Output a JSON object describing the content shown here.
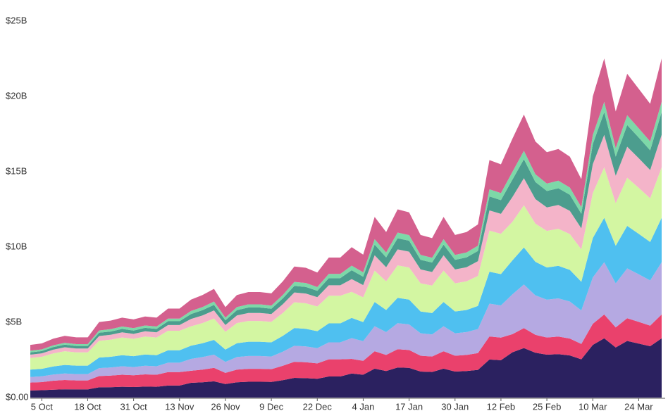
{
  "chart_data": {
    "type": "stacked_area",
    "categories": [
      null,
      "5 Oct",
      null,
      null,
      null,
      "18 Oct",
      null,
      null,
      null,
      "31 Oct",
      null,
      null,
      null,
      "13 Nov",
      null,
      null,
      null,
      "26 Nov",
      null,
      null,
      null,
      "9 Dec",
      null,
      null,
      null,
      "22 Dec",
      null,
      null,
      null,
      "4 Jan",
      null,
      null,
      null,
      "17 Jan",
      null,
      null,
      null,
      "30 Jan",
      null,
      null,
      null,
      "12 Feb",
      null,
      null,
      null,
      "25 Feb",
      null,
      null,
      null,
      "10 Mar",
      null,
      null,
      null,
      "24 Mar",
      null,
      null
    ],
    "ylim": [
      0,
      25
    ],
    "yticks": [
      {
        "value": 0,
        "label": "$0.00"
      },
      {
        "value": 5,
        "label": "$5B"
      },
      {
        "value": 10,
        "label": "$10B"
      },
      {
        "value": 15,
        "label": "$15B"
      },
      {
        "value": 20,
        "label": "$20B"
      },
      {
        "value": 25,
        "label": "$25B"
      }
    ],
    "grid": false,
    "series": [
      {
        "color": "#2b2160",
        "values": [
          0.47,
          0.49,
          0.53,
          0.55,
          0.54,
          0.54,
          0.68,
          0.69,
          0.72,
          0.7,
          0.73,
          0.72,
          0.8,
          0.8,
          0.98,
          1.02,
          1.08,
          0.9,
          1.02,
          1.05,
          1.05,
          1.04,
          1.16,
          1.31,
          1.29,
          1.25,
          1.4,
          1.4,
          1.6,
          1.52,
          1.92,
          1.76,
          2.0,
          1.97,
          1.73,
          1.7,
          1.92,
          1.73,
          1.76,
          1.84,
          2.53,
          2.48,
          3.01,
          3.29,
          2.98,
          2.85,
          2.89,
          2.8,
          2.54,
          3.5,
          3.94,
          3.33,
          3.76,
          3.59,
          3.41,
          3.94
        ]
      },
      {
        "color": "#ea416c",
        "values": [
          0.53,
          0.54,
          0.59,
          0.62,
          0.6,
          0.6,
          0.75,
          0.77,
          0.8,
          0.78,
          0.81,
          0.8,
          0.89,
          0.89,
          0.8,
          0.84,
          0.89,
          0.74,
          0.84,
          0.86,
          0.86,
          0.85,
          0.95,
          1.07,
          1.06,
          1.02,
          1.14,
          1.14,
          0.97,
          0.92,
          1.16,
          1.07,
          1.21,
          1.19,
          1.05,
          1.03,
          1.16,
          1.05,
          1.07,
          1.12,
          1.53,
          1.5,
          1.2,
          1.32,
          1.19,
          1.14,
          1.16,
          1.12,
          1.02,
          1.4,
          1.58,
          1.33,
          1.51,
          1.44,
          1.37,
          1.58
        ]
      },
      {
        "color": "#b5a9e2",
        "values": [
          0.37,
          0.38,
          0.41,
          0.43,
          0.42,
          0.42,
          0.53,
          0.54,
          0.56,
          0.55,
          0.57,
          0.56,
          0.63,
          0.63,
          0.79,
          0.83,
          0.88,
          0.73,
          0.83,
          0.85,
          0.85,
          0.84,
          0.94,
          1.06,
          1.05,
          1.01,
          1.13,
          1.13,
          1.38,
          1.31,
          1.66,
          1.52,
          1.73,
          1.7,
          1.49,
          1.46,
          1.66,
          1.49,
          1.52,
          1.59,
          2.18,
          2.14,
          2.65,
          2.9,
          2.62,
          2.51,
          2.54,
          2.46,
          2.23,
          3.08,
          3.47,
          2.93,
          3.31,
          3.16,
          3.0,
          3.47
        ]
      },
      {
        "color": "#4fc0f0",
        "values": [
          0.49,
          0.5,
          0.54,
          0.57,
          0.56,
          0.56,
          0.7,
          0.71,
          0.74,
          0.72,
          0.75,
          0.74,
          0.82,
          0.82,
          0.88,
          0.92,
          0.98,
          0.82,
          0.92,
          0.95,
          0.95,
          0.94,
          1.05,
          1.18,
          1.17,
          1.13,
          1.26,
          1.26,
          1.34,
          1.27,
          1.61,
          1.47,
          1.68,
          1.65,
          1.45,
          1.42,
          1.61,
          1.45,
          1.47,
          1.54,
          2.12,
          2.08,
          2.25,
          2.46,
          2.23,
          2.14,
          2.16,
          2.1,
          1.9,
          2.62,
          2.95,
          2.49,
          2.82,
          2.69,
          2.55,
          2.95
        ]
      },
      {
        "color": "#d3f6a2",
        "values": [
          0.77,
          0.8,
          0.86,
          0.91,
          0.88,
          0.88,
          1.11,
          1.13,
          1.17,
          1.15,
          1.19,
          1.17,
          1.3,
          1.3,
          1.28,
          1.34,
          1.42,
          1.18,
          1.34,
          1.38,
          1.38,
          1.36,
          1.52,
          1.71,
          1.69,
          1.64,
          1.83,
          1.83,
          1.73,
          1.64,
          2.08,
          1.9,
          2.16,
          2.13,
          1.87,
          1.83,
          2.08,
          1.87,
          1.9,
          1.99,
          2.73,
          2.68,
          2.56,
          2.8,
          2.53,
          2.43,
          2.46,
          2.38,
          2.16,
          2.98,
          3.35,
          2.83,
          3.2,
          3.05,
          2.91,
          3.35
        ]
      },
      {
        "color": "#f4b4c9",
        "values": [
          0.22,
          0.23,
          0.25,
          0.26,
          0.26,
          0.26,
          0.32,
          0.33,
          0.34,
          0.33,
          0.35,
          0.34,
          0.38,
          0.38,
          0.49,
          0.51,
          0.54,
          0.45,
          0.51,
          0.53,
          0.53,
          0.52,
          0.58,
          0.65,
          0.65,
          0.62,
          0.7,
          0.7,
          0.85,
          0.81,
          1.02,
          0.94,
          1.06,
          1.05,
          0.92,
          0.9,
          1.02,
          0.92,
          0.94,
          0.98,
          1.34,
          1.32,
          1.65,
          1.8,
          1.63,
          1.56,
          1.58,
          1.54,
          1.39,
          1.92,
          2.16,
          1.82,
          2.06,
          1.97,
          1.87,
          2.16
        ]
      },
      {
        "color": "#4c9d8e",
        "values": [
          0.15,
          0.15,
          0.17,
          0.18,
          0.17,
          0.17,
          0.22,
          0.22,
          0.23,
          0.22,
          0.23,
          0.23,
          0.25,
          0.25,
          0.33,
          0.35,
          0.37,
          0.31,
          0.35,
          0.36,
          0.36,
          0.35,
          0.39,
          0.44,
          0.44,
          0.42,
          0.47,
          0.47,
          0.59,
          0.56,
          0.71,
          0.65,
          0.74,
          0.73,
          0.64,
          0.63,
          0.71,
          0.64,
          0.65,
          0.68,
          0.93,
          0.91,
          1.15,
          1.26,
          1.14,
          1.09,
          1.11,
          1.07,
          0.97,
          1.34,
          1.51,
          1.27,
          1.44,
          1.37,
          1.31,
          1.51
        ]
      },
      {
        "color": "#7dd8a8",
        "values": [
          0.11,
          0.11,
          0.12,
          0.12,
          0.12,
          0.12,
          0.15,
          0.15,
          0.16,
          0.16,
          0.16,
          0.16,
          0.18,
          0.18,
          0.2,
          0.2,
          0.22,
          0.18,
          0.2,
          0.21,
          0.21,
          0.21,
          0.23,
          0.26,
          0.26,
          0.25,
          0.28,
          0.28,
          0.3,
          0.29,
          0.36,
          0.33,
          0.38,
          0.37,
          0.32,
          0.32,
          0.36,
          0.32,
          0.33,
          0.35,
          0.47,
          0.47,
          0.52,
          0.56,
          0.51,
          0.49,
          0.5,
          0.48,
          0.44,
          0.6,
          0.68,
          0.57,
          0.65,
          0.62,
          0.59,
          0.68
        ]
      },
      {
        "color": "#d4608e",
        "values": [
          0.39,
          0.4,
          0.44,
          0.46,
          0.45,
          0.45,
          0.56,
          0.57,
          0.59,
          0.58,
          0.6,
          0.59,
          0.66,
          0.66,
          0.76,
          0.8,
          0.84,
          0.7,
          0.8,
          0.82,
          0.82,
          0.81,
          0.9,
          1.02,
          1.01,
          0.97,
          1.09,
          1.09,
          1.23,
          1.17,
          1.48,
          1.35,
          1.54,
          1.51,
          1.33,
          1.3,
          1.48,
          1.33,
          1.35,
          1.41,
          1.94,
          1.91,
          2.2,
          2.41,
          2.18,
          2.09,
          2.11,
          2.05,
          1.86,
          2.56,
          2.88,
          2.43,
          2.75,
          2.62,
          2.5,
          2.88
        ]
      }
    ]
  }
}
